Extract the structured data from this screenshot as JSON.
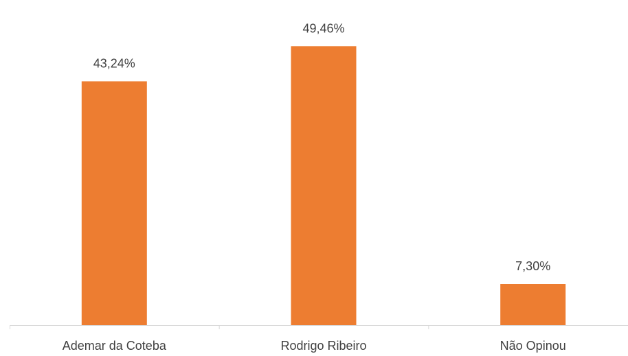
{
  "chart_data": {
    "type": "bar",
    "categories": [
      "Ademar da Coteba",
      "Rodrigo Ribeiro",
      "Não Opinou"
    ],
    "values": [
      43.24,
      49.46,
      7.3
    ],
    "data_labels": [
      "43,24%",
      "49,46%",
      "7,30%"
    ],
    "ylim": [
      0,
      54
    ],
    "bar_color": "#ED7D31",
    "axis_color": "#D9D9D9",
    "grid": false,
    "legend": "none",
    "title": "",
    "xlabel": "",
    "ylabel": ""
  }
}
